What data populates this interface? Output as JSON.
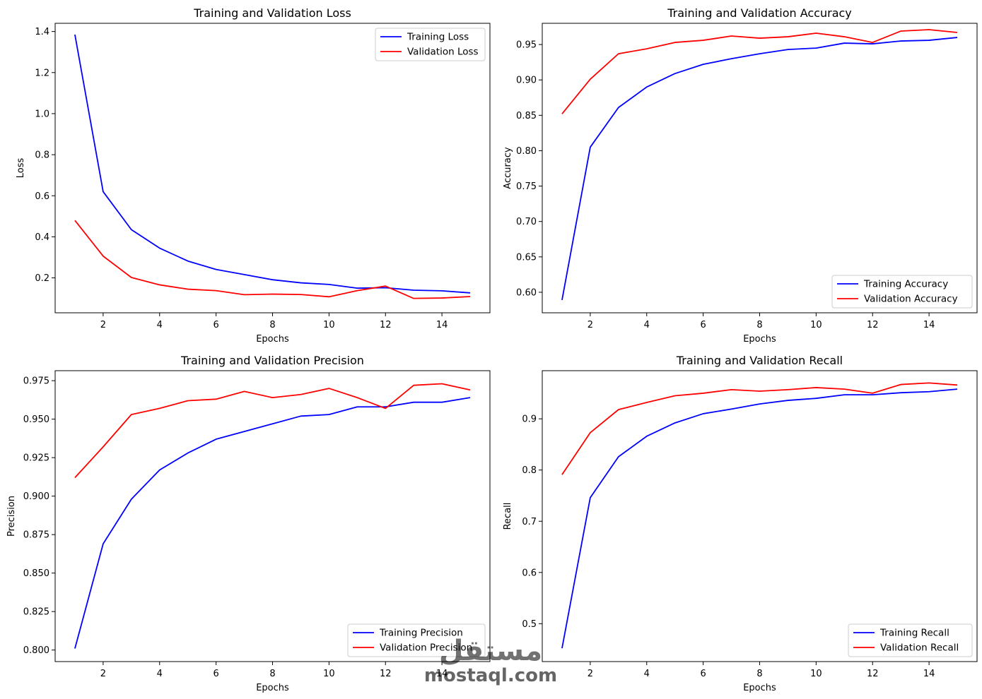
{
  "colors": {
    "training": "#0000ff",
    "validation": "#ff0000",
    "axes": "#000000",
    "background": "#ffffff"
  },
  "watermark": {
    "main": "مستقل",
    "sub": "mostaql.com"
  },
  "chart_data": [
    {
      "type": "line",
      "title": "Training and Validation Loss",
      "xlabel": "Epochs",
      "ylabel": "Loss",
      "xlim": [
        0.3,
        15.7
      ],
      "ylim": [
        0.03,
        1.44
      ],
      "xticks": [
        2,
        4,
        6,
        8,
        10,
        12,
        14
      ],
      "yticks": [
        0.2,
        0.4,
        0.6,
        0.8,
        1.0,
        1.2,
        1.4
      ],
      "ytick_labels": [
        "0.2",
        "0.4",
        "0.6",
        "0.8",
        "1.0",
        "1.2",
        "1.4"
      ],
      "legend_position": "upper-right",
      "x": [
        1,
        2,
        3,
        4,
        5,
        6,
        7,
        8,
        9,
        10,
        11,
        12,
        13,
        14,
        15
      ],
      "series": [
        {
          "name": "Training Loss",
          "color": "training",
          "values": [
            1.385,
            0.62,
            0.435,
            0.345,
            0.282,
            0.241,
            0.216,
            0.191,
            0.176,
            0.168,
            0.15,
            0.152,
            0.14,
            0.137,
            0.127
          ]
        },
        {
          "name": "Validation Loss",
          "color": "validation",
          "values": [
            0.48,
            0.306,
            0.202,
            0.166,
            0.145,
            0.138,
            0.118,
            0.121,
            0.119,
            0.108,
            0.138,
            0.16,
            0.1,
            0.102,
            0.109
          ]
        }
      ]
    },
    {
      "type": "line",
      "title": "Training and Validation Accuracy",
      "xlabel": "Epochs",
      "ylabel": "Accuracy",
      "xlim": [
        0.3,
        15.7
      ],
      "ylim": [
        0.571,
        0.98
      ],
      "xticks": [
        2,
        4,
        6,
        8,
        10,
        12,
        14
      ],
      "yticks": [
        0.6,
        0.65,
        0.7,
        0.75,
        0.8,
        0.85,
        0.9,
        0.95
      ],
      "ytick_labels": [
        "0.60",
        "0.65",
        "0.70",
        "0.75",
        "0.80",
        "0.85",
        "0.90",
        "0.95"
      ],
      "legend_position": "lower-right",
      "x": [
        1,
        2,
        3,
        4,
        5,
        6,
        7,
        8,
        9,
        10,
        11,
        12,
        13,
        14,
        15
      ],
      "series": [
        {
          "name": "Training Accuracy",
          "color": "training",
          "values": [
            0.589,
            0.805,
            0.861,
            0.89,
            0.909,
            0.922,
            0.93,
            0.937,
            0.943,
            0.945,
            0.952,
            0.951,
            0.955,
            0.956,
            0.96
          ]
        },
        {
          "name": "Validation Accuracy",
          "color": "validation",
          "values": [
            0.852,
            0.901,
            0.937,
            0.944,
            0.953,
            0.956,
            0.962,
            0.959,
            0.961,
            0.966,
            0.961,
            0.953,
            0.969,
            0.971,
            0.967
          ]
        }
      ]
    },
    {
      "type": "line",
      "title": "Training and Validation Precision",
      "xlabel": "Epochs",
      "ylabel": "Precision",
      "xlim": [
        0.3,
        15.7
      ],
      "ylim": [
        0.7925,
        0.9815
      ],
      "xticks": [
        2,
        4,
        6,
        8,
        10,
        12,
        14
      ],
      "yticks": [
        0.8,
        0.825,
        0.85,
        0.875,
        0.9,
        0.925,
        0.95,
        0.975
      ],
      "ytick_labels": [
        "0.800",
        "0.825",
        "0.850",
        "0.875",
        "0.900",
        "0.925",
        "0.950",
        "0.975"
      ],
      "legend_position": "lower-right",
      "x": [
        1,
        2,
        3,
        4,
        5,
        6,
        7,
        8,
        9,
        10,
        11,
        12,
        13,
        14,
        15
      ],
      "series": [
        {
          "name": "Training Precision",
          "color": "training",
          "values": [
            0.801,
            0.869,
            0.898,
            0.917,
            0.928,
            0.937,
            0.942,
            0.947,
            0.952,
            0.953,
            0.958,
            0.958,
            0.961,
            0.961,
            0.964
          ]
        },
        {
          "name": "Validation Precision",
          "color": "validation",
          "values": [
            0.912,
            0.932,
            0.953,
            0.957,
            0.962,
            0.963,
            0.968,
            0.964,
            0.966,
            0.97,
            0.964,
            0.957,
            0.972,
            0.973,
            0.969
          ]
        }
      ]
    },
    {
      "type": "line",
      "title": "Training and Validation Recall",
      "xlabel": "Epochs",
      "ylabel": "Recall",
      "xlim": [
        0.3,
        15.7
      ],
      "ylim": [
        0.426,
        0.994
      ],
      "xticks": [
        2,
        4,
        6,
        8,
        10,
        12,
        14
      ],
      "yticks": [
        0.5,
        0.6,
        0.7,
        0.8,
        0.9
      ],
      "ytick_labels": [
        "0.5",
        "0.6",
        "0.7",
        "0.8",
        "0.9"
      ],
      "legend_position": "lower-right",
      "x": [
        1,
        2,
        3,
        4,
        5,
        6,
        7,
        8,
        9,
        10,
        11,
        12,
        13,
        14,
        15
      ],
      "series": [
        {
          "name": "Training Recall",
          "color": "training",
          "values": [
            0.452,
            0.746,
            0.826,
            0.866,
            0.892,
            0.91,
            0.919,
            0.929,
            0.936,
            0.94,
            0.947,
            0.947,
            0.951,
            0.953,
            0.958
          ]
        },
        {
          "name": "Validation Recall",
          "color": "validation",
          "values": [
            0.791,
            0.873,
            0.918,
            0.932,
            0.945,
            0.95,
            0.957,
            0.954,
            0.957,
            0.961,
            0.958,
            0.95,
            0.967,
            0.97,
            0.966
          ]
        }
      ]
    }
  ]
}
